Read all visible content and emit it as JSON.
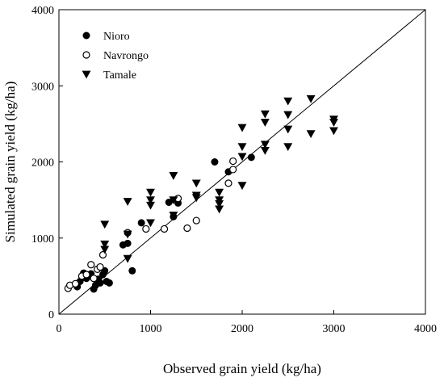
{
  "chart_data": {
    "type": "scatter",
    "title": "",
    "xlabel": "Observed grain yield (kg/ha)",
    "ylabel": "Simulated grain yield (kg/ha)",
    "xlim": [
      0,
      4000
    ],
    "ylim": [
      0,
      4000
    ],
    "xticks": [
      0,
      1000,
      2000,
      3000,
      4000
    ],
    "yticks": [
      0,
      1000,
      2000,
      3000,
      4000
    ],
    "grid": false,
    "legend_position": "top-left",
    "reference_line": "1:1",
    "series": [
      {
        "name": "Nioro",
        "marker": "filled-circle",
        "color": "#000000",
        "points": [
          [
            200,
            360
          ],
          [
            230,
            430
          ],
          [
            260,
            480
          ],
          [
            270,
            540
          ],
          [
            300,
            470
          ],
          [
            320,
            500
          ],
          [
            350,
            530
          ],
          [
            380,
            330
          ],
          [
            400,
            380
          ],
          [
            430,
            460
          ],
          [
            450,
            410
          ],
          [
            480,
            520
          ],
          [
            500,
            570
          ],
          [
            520,
            430
          ],
          [
            550,
            410
          ],
          [
            700,
            910
          ],
          [
            750,
            930
          ],
          [
            800,
            570
          ],
          [
            900,
            1200
          ],
          [
            1250,
            1280
          ],
          [
            1300,
            1460
          ],
          [
            1200,
            1470
          ],
          [
            1700,
            2000
          ],
          [
            1850,
            1870
          ],
          [
            2100,
            2060
          ]
        ]
      },
      {
        "name": "Navrongo",
        "marker": "open-circle",
        "color": "#000000",
        "points": [
          [
            100,
            340
          ],
          [
            120,
            380
          ],
          [
            180,
            400
          ],
          [
            250,
            500
          ],
          [
            300,
            520
          ],
          [
            350,
            650
          ],
          [
            380,
            470
          ],
          [
            420,
            590
          ],
          [
            450,
            620
          ],
          [
            480,
            780
          ],
          [
            750,
            1070
          ],
          [
            950,
            1120
          ],
          [
            1150,
            1120
          ],
          [
            1300,
            1520
          ],
          [
            1400,
            1130
          ],
          [
            1500,
            1230
          ],
          [
            1900,
            1900
          ],
          [
            1850,
            1720
          ],
          [
            1900,
            2010
          ]
        ]
      },
      {
        "name": "Tamale",
        "marker": "filled-triangle-down",
        "color": "#000000",
        "points": [
          [
            500,
            1180
          ],
          [
            500,
            920
          ],
          [
            500,
            850
          ],
          [
            750,
            1480
          ],
          [
            750,
            1050
          ],
          [
            750,
            730
          ],
          [
            1000,
            1600
          ],
          [
            1000,
            1500
          ],
          [
            1000,
            1430
          ],
          [
            1000,
            1200
          ],
          [
            1250,
            1820
          ],
          [
            1250,
            1500
          ],
          [
            1250,
            1300
          ],
          [
            1500,
            1720
          ],
          [
            1500,
            1560
          ],
          [
            1500,
            1530
          ],
          [
            1750,
            1600
          ],
          [
            1750,
            1500
          ],
          [
            1750,
            1450
          ],
          [
            1750,
            1380
          ],
          [
            2000,
            2450
          ],
          [
            2000,
            2200
          ],
          [
            2000,
            2070
          ],
          [
            2000,
            1690
          ],
          [
            2250,
            2630
          ],
          [
            2250,
            2520
          ],
          [
            2250,
            2230
          ],
          [
            2250,
            2150
          ],
          [
            2500,
            2800
          ],
          [
            2500,
            2620
          ],
          [
            2500,
            2430
          ],
          [
            2500,
            2200
          ],
          [
            2750,
            2830
          ],
          [
            2750,
            2370
          ],
          [
            3000,
            2560
          ],
          [
            3000,
            2520
          ],
          [
            3000,
            2410
          ]
        ]
      }
    ]
  }
}
